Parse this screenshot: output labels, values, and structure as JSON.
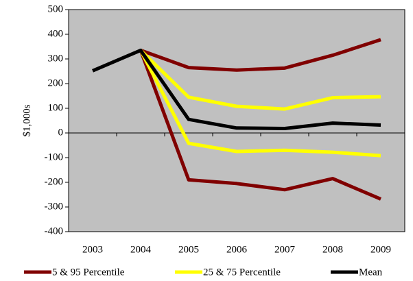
{
  "chart_data": {
    "type": "line",
    "y_label": "$1,000s",
    "categories": [
      "2003",
      "2004",
      "2005",
      "2006",
      "2007",
      "2008",
      "2009"
    ],
    "ylim": [
      -400,
      500
    ],
    "yticks": [
      -400,
      -300,
      -200,
      -100,
      0,
      100,
      200,
      300,
      400,
      500
    ],
    "background": "#c0c0c0",
    "series": [
      {
        "name": "5 & 95 Percentile",
        "color": "#800000",
        "lines": [
          [
            null,
            335,
            265,
            255,
            263,
            315,
            378
          ],
          [
            null,
            335,
            -190,
            -205,
            -230,
            -185,
            -268
          ]
        ]
      },
      {
        "name": "25 & 75 Percentile",
        "color": "#ffff00",
        "lines": [
          [
            null,
            335,
            145,
            108,
            97,
            143,
            147
          ],
          [
            null,
            335,
            -42,
            -75,
            -70,
            -78,
            -92
          ]
        ]
      },
      {
        "name": "Mean",
        "color": "#000000",
        "lines": [
          [
            252,
            335,
            55,
            20,
            18,
            40,
            32
          ]
        ]
      }
    ]
  }
}
